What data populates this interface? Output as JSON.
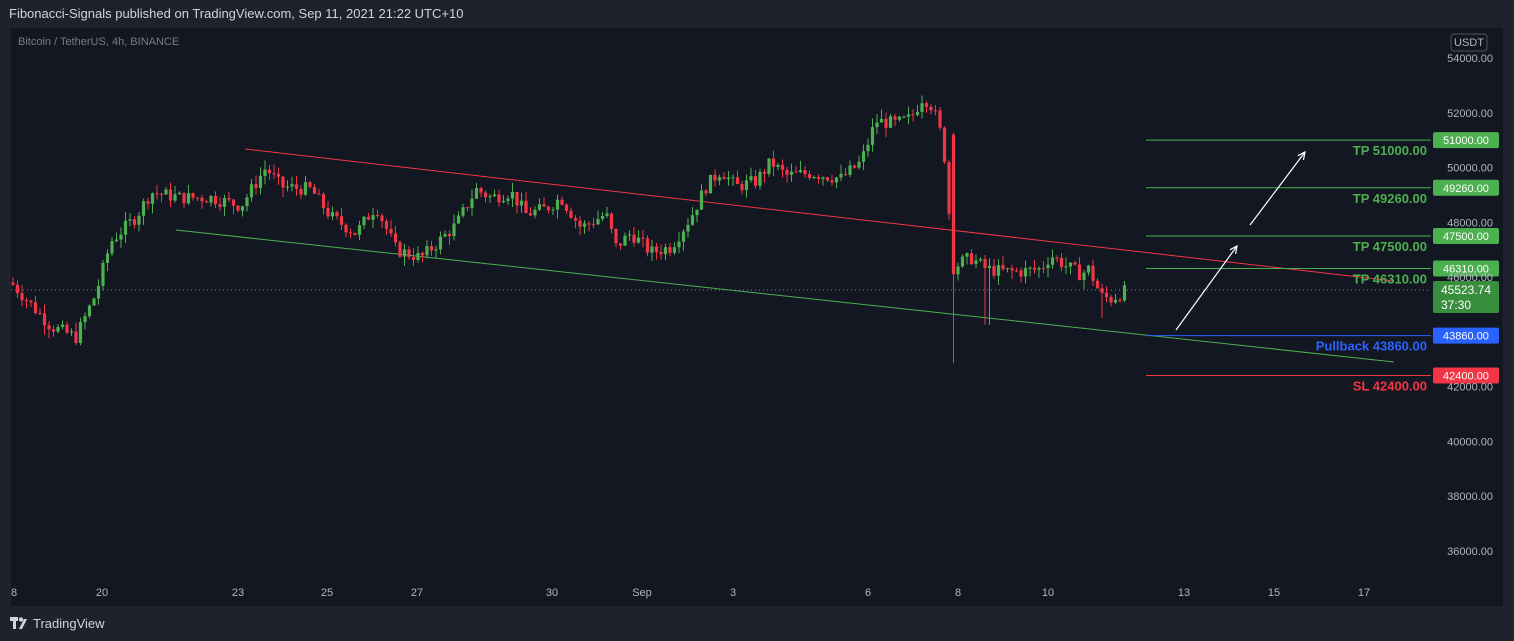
{
  "header": {
    "published": "Fibonacci-Signals published on TradingView.com, Sep 11, 2021 21:22 UTC+10"
  },
  "footer": {
    "brand": "TradingView",
    "brand_icon": "tradingview-logo-icon"
  },
  "chart": {
    "symbol": "Bitcoin / TetherUS, 4h, BINANCE",
    "currency_badge": "USDT",
    "price_ticks": [
      "54000.00",
      "52000.00",
      "50000.00",
      "48000.00",
      "46000.00",
      "42000.00",
      "40000.00",
      "38000.00",
      "36000.00"
    ],
    "time_ticks": [
      "8",
      "20",
      "23",
      "25",
      "27",
      "30",
      "Sep",
      "3",
      "6",
      "8",
      "10",
      "13",
      "15",
      "17"
    ],
    "current_price": "45523.74",
    "countdown": "37:30",
    "levels": [
      {
        "text": "TP 51000.00",
        "tag": "51000.00",
        "color": "#4caf50"
      },
      {
        "text": "TP 49260.00",
        "tag": "49260.00",
        "color": "#4caf50"
      },
      {
        "text": "TP 47500.00",
        "tag": "47500.00",
        "color": "#4caf50"
      },
      {
        "text": "TP 46310.00",
        "tag": "46310.00",
        "color": "#4caf50"
      },
      {
        "text": "Pullback 43860.00",
        "tag": "43860.00",
        "color": "#2962ff"
      },
      {
        "text": "SL 42400.00",
        "tag": "42400.00",
        "color": "#f23645"
      }
    ],
    "colors": {
      "up": "#26a69a",
      "bull": "#4caf50",
      "bear": "#f23645",
      "upper_channel": "#f23645",
      "lower_channel": "#4caf50"
    }
  },
  "chart_data": {
    "type": "candlestick",
    "title": "Bitcoin / TetherUS, 4h, BINANCE",
    "ylim": [
      34300,
      55600
    ],
    "ohlc_anchors": [
      {
        "t": "Aug 18",
        "price": 45800
      },
      {
        "t": "Aug 19",
        "price": 44000
      },
      {
        "t": "Aug 20",
        "price": 45500
      },
      {
        "t": "Aug 21",
        "price": 49000
      },
      {
        "t": "Aug 23",
        "price": 50200
      },
      {
        "t": "Aug 24",
        "price": 49200
      },
      {
        "t": "Aug 26",
        "price": 46900
      },
      {
        "t": "Aug 27",
        "price": 47600
      },
      {
        "t": "Aug 29",
        "price": 48800
      },
      {
        "t": "Aug 31",
        "price": 47200
      },
      {
        "t": "Sep 1",
        "price": 46800
      },
      {
        "t": "Sep 3",
        "price": 49800
      },
      {
        "t": "Sep 5",
        "price": 49500
      },
      {
        "t": "Sep 6",
        "price": 51500
      },
      {
        "t": "Sep 7",
        "price": 52800
      },
      {
        "t": "Sep 7 close",
        "price": 46500
      },
      {
        "t": "Sep 8",
        "price": 46500
      },
      {
        "t": "Sep 9",
        "price": 46400
      },
      {
        "t": "Sep 10",
        "price": 46700
      },
      {
        "t": "Sep 11",
        "price": 45523.74
      }
    ],
    "extremes": {
      "high": 52920,
      "low": 42850
    },
    "last_price": 45523.74
  }
}
